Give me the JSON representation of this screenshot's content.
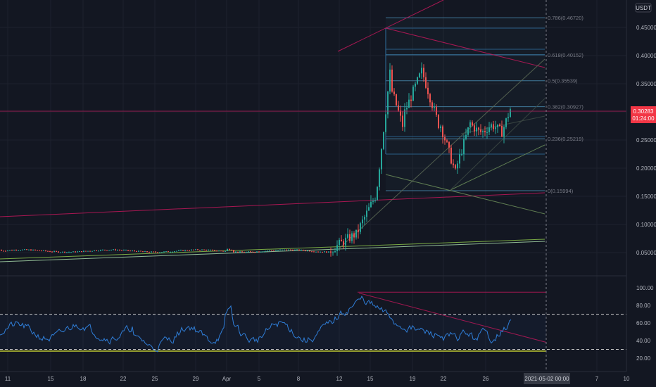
{
  "chart_data": {
    "type": "candlestick",
    "currency": "USDT",
    "last_price": "0.30283",
    "countdown": "01:24:00",
    "price_ticks": [
      "0.45000",
      "0.40000",
      "0.35000",
      "0.30000",
      "0.25000",
      "0.20000",
      "0.15000",
      "0.10000",
      "0.05000"
    ],
    "price_tick_values": [
      0.45,
      0.4,
      0.35,
      0.3,
      0.25,
      0.2,
      0.15,
      0.1,
      0.05
    ],
    "date_ticks": [
      "11",
      "15",
      "18",
      "22",
      "25",
      "29",
      "Apr",
      "5",
      "8",
      "12",
      "15",
      "19",
      "22",
      "26",
      "7",
      "10"
    ],
    "crosshair_date": "2021-05-02  00:00",
    "fib_levels": [
      {
        "label": "0.786(0.46720)",
        "value": 0.4672
      },
      {
        "label": "0.618(0.40152)",
        "value": 0.40152
      },
      {
        "label": "0.5(0.35539)",
        "value": 0.35539
      },
      {
        "label": "0.382(0.30927)",
        "value": 0.30927
      },
      {
        "label": "0.236(0.25219)",
        "value": 0.25219
      },
      {
        "label": "0(0.15994)",
        "value": 0.15994
      }
    ],
    "rsi": {
      "ticks": [
        "100.00",
        "80.00",
        "60.00",
        "40.00",
        "20.00"
      ],
      "tick_values": [
        100,
        80,
        60,
        40,
        20
      ],
      "upper_band": 70,
      "lower_band": 30
    },
    "colors": {
      "up": "#26a69a",
      "down": "#ef5350",
      "rsi": "#2f7ed8",
      "fib": "#4b8fb5",
      "trend_red": "#c2185b",
      "trend_green": "#8bc34a",
      "price_label": "#f23645"
    }
  }
}
